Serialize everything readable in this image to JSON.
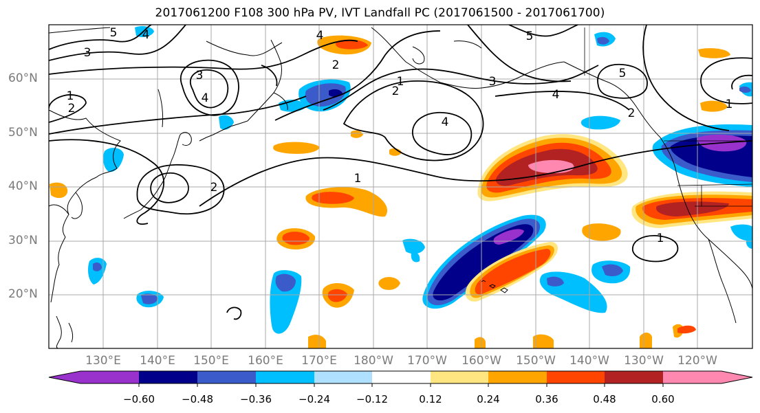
{
  "title": "2017061200 F108 300 hPa PV, IVT Landfall PC (2017061500 - 2017061700)",
  "lat_labels": [
    "60°N",
    "50°N",
    "40°N",
    "30°N",
    "20°N"
  ],
  "lon_labels": [
    "130°E",
    "140°E",
    "150°E",
    "160°E",
    "170°E",
    "180°W",
    "170°W",
    "160°W",
    "150°W",
    "140°W",
    "130°W",
    "120°W"
  ],
  "colorbar": {
    "tick_labels": [
      "−0.60",
      "−0.48",
      "−0.36",
      "−0.24",
      "−0.12",
      "0.12",
      "0.24",
      "0.36",
      "0.48",
      "0.60"
    ],
    "colors": [
      "#9932cc",
      "#00008b",
      "#3a5bc9",
      "#00bfff",
      "#b0e0ff",
      "#ffffff",
      "#ffe680",
      "#ffa500",
      "#ff4500",
      "#b22222",
      "#ff88b0"
    ]
  },
  "contour_labels": [
    "5",
    "4",
    "3",
    "3",
    "4",
    "1",
    "2",
    "2",
    "4",
    "2",
    "1",
    "2",
    "3",
    "4",
    "5",
    "4",
    "1",
    "1",
    "2",
    "5",
    "1"
  ]
}
